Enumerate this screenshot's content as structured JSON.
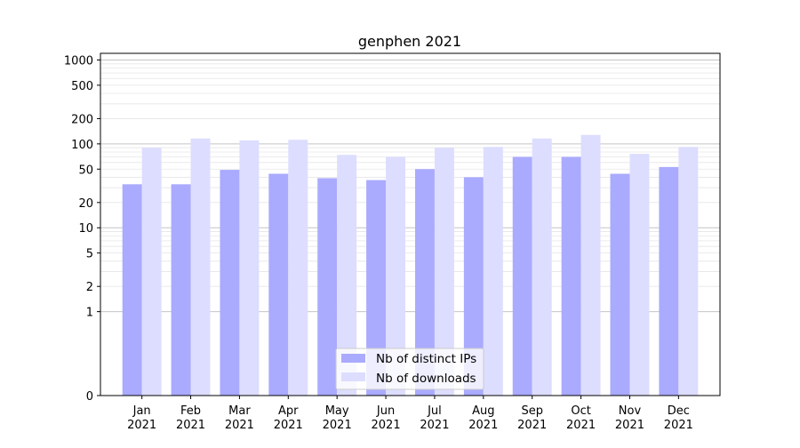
{
  "chart_data": {
    "type": "bar",
    "title": "genphen 2021",
    "xlabel": "",
    "ylabel": "",
    "yscale": "symlog",
    "ylim": [
      0,
      1200
    ],
    "yticks": [
      0,
      1,
      2,
      5,
      10,
      20,
      50,
      100,
      200,
      500,
      1000
    ],
    "ytick_labels": [
      "0",
      "1",
      "2",
      "5",
      "10",
      "20",
      "50",
      "100",
      "200",
      "500",
      "1000"
    ],
    "grid": true,
    "legend_position": "bottom-center",
    "categories": [
      "Jan\n2021",
      "Feb\n2021",
      "Mar\n2021",
      "Apr\n2021",
      "May\n2021",
      "Jun\n2021",
      "Jul\n2021",
      "Aug\n2021",
      "Sep\n2021",
      "Oct\n2021",
      "Nov\n2021",
      "Dec\n2021"
    ],
    "series": [
      {
        "name": "Nb of distinct IPs",
        "color": "#aaaaff",
        "values": [
          33,
          33,
          49,
          44,
          39,
          37,
          50,
          40,
          70,
          70,
          44,
          53
        ]
      },
      {
        "name": "Nb of downloads",
        "color": "#ddddff",
        "values": [
          90,
          116,
          110,
          112,
          74,
          70,
          90,
          92,
          116,
          128,
          76,
          92
        ]
      }
    ]
  }
}
